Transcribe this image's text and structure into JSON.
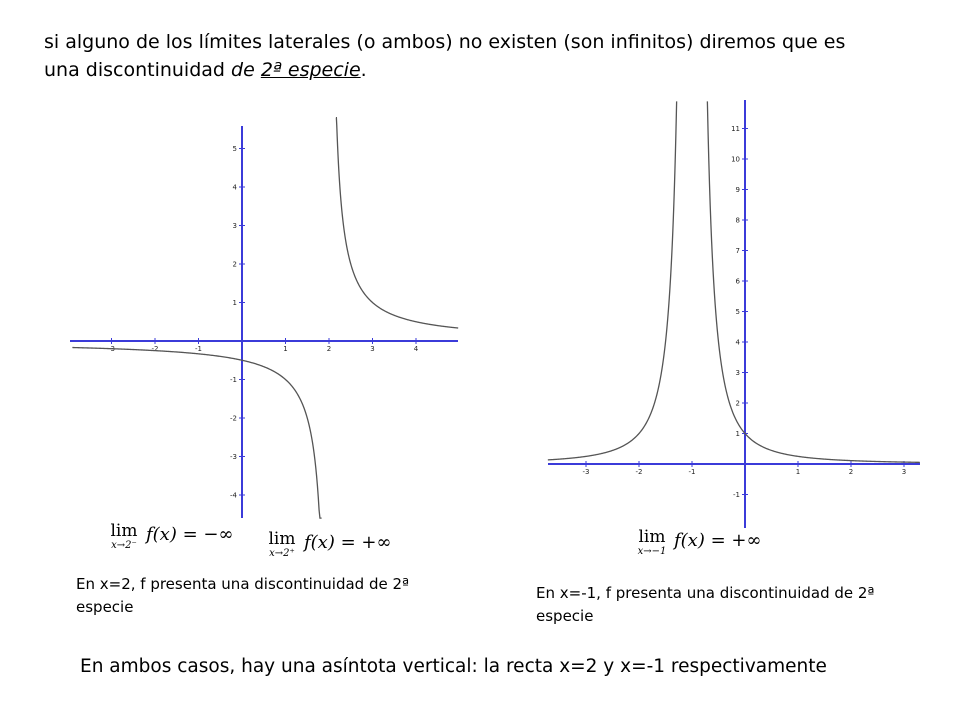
{
  "intro": {
    "line1": "si alguno de los límites laterales (o ambos) no existen (son infinitos) diremos que es",
    "line2_prefix": "una discontinuidad ",
    "line2_de": "de ",
    "line2_especie": "2ª especie",
    "line2_end": "."
  },
  "graph1": {
    "x_ticks": [
      "-3",
      "-2",
      "-1",
      "1",
      "2",
      "3",
      "4"
    ],
    "y_ticks": [
      "5",
      "4",
      "3",
      "2",
      "1",
      "-1",
      "-2",
      "-3",
      "-4"
    ],
    "asymptote_x": 2,
    "limit_left": {
      "lim": "lim",
      "sub": "x→2⁻",
      "expr": "f(x) = −∞"
    },
    "limit_right": {
      "lim": "lim",
      "sub": "x→2⁺",
      "expr": "f(x) = +∞"
    },
    "caption": "En x=2, f presenta una discontinuidad de 2ª especie"
  },
  "graph2": {
    "x_ticks": [
      "-3",
      "-2",
      "-1",
      "1",
      "2",
      "3"
    ],
    "y_ticks": [
      "11",
      "10",
      "9",
      "8",
      "7",
      "6",
      "5",
      "4",
      "3",
      "2",
      "1",
      "-1"
    ],
    "asymptote_x": -1,
    "limit": {
      "lim": "lim",
      "sub": "x→−1",
      "expr": "f(x) = +∞"
    },
    "caption": "En x=-1, f presenta una discontinuidad de 2ª especie"
  },
  "conclusion": "En ambos casos, hay una asíntota vertical: la recta x=2 y x=-1 respectivamente"
}
